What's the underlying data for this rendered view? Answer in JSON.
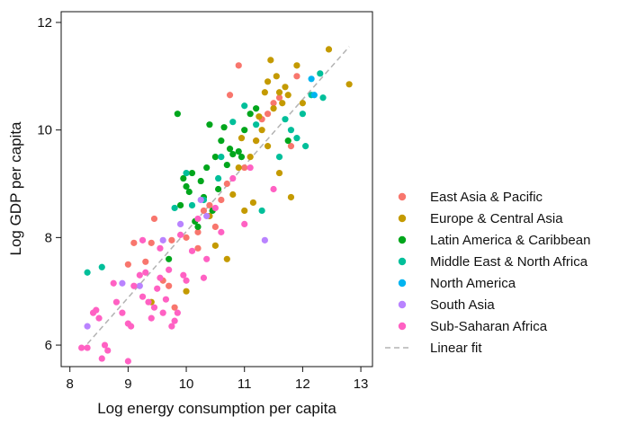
{
  "chart_data": {
    "type": "scatter",
    "xlabel": "Log energy consumption per capita",
    "ylabel": "Log GDP per capita",
    "xlim": [
      7.85,
      13.2
    ],
    "ylim": [
      5.6,
      12.2
    ],
    "x_ticks": [
      8,
      9,
      10,
      11,
      12,
      13
    ],
    "y_ticks": [
      6,
      8,
      10,
      12
    ],
    "grid": false,
    "legend_position": "right",
    "fit": {
      "name": "Linear fit",
      "style": "dashed",
      "color": "#b3b3b3",
      "points": [
        [
          8.2,
          5.9
        ],
        [
          12.8,
          11.55
        ]
      ]
    },
    "series": [
      {
        "name": "East Asia & Pacific",
        "color": "#f8766d",
        "points": [
          [
            9.0,
            7.5
          ],
          [
            9.1,
            7.9
          ],
          [
            9.3,
            7.55
          ],
          [
            9.4,
            7.9
          ],
          [
            9.45,
            8.35
          ],
          [
            9.6,
            7.2
          ],
          [
            9.7,
            7.1
          ],
          [
            9.75,
            7.95
          ],
          [
            9.8,
            6.7
          ],
          [
            10.2,
            8.1
          ],
          [
            10.3,
            8.5
          ],
          [
            10.4,
            8.6
          ],
          [
            10.5,
            8.2
          ],
          [
            10.6,
            8.7
          ],
          [
            10.7,
            9.0
          ],
          [
            10.75,
            10.65
          ],
          [
            10.9,
            11.2
          ],
          [
            11.0,
            9.3
          ],
          [
            11.2,
            9.8
          ],
          [
            11.3,
            10.2
          ],
          [
            11.4,
            10.3
          ],
          [
            11.6,
            10.6
          ],
          [
            11.8,
            9.7
          ],
          [
            11.9,
            11.0
          ],
          [
            10.2,
            7.8
          ],
          [
            10.0,
            8.0
          ],
          [
            11.5,
            10.5
          ]
        ]
      },
      {
        "name": "Europe & Central Asia",
        "color": "#c49a00",
        "points": [
          [
            9.4,
            6.8
          ],
          [
            10.0,
            7.0
          ],
          [
            10.4,
            8.4
          ],
          [
            10.5,
            7.85
          ],
          [
            10.7,
            7.6
          ],
          [
            10.8,
            8.8
          ],
          [
            10.9,
            9.3
          ],
          [
            11.0,
            8.5
          ],
          [
            11.1,
            9.5
          ],
          [
            11.15,
            8.65
          ],
          [
            11.2,
            9.8
          ],
          [
            11.3,
            10.0
          ],
          [
            11.35,
            10.7
          ],
          [
            11.4,
            10.9
          ],
          [
            11.45,
            11.3
          ],
          [
            11.5,
            10.4
          ],
          [
            11.55,
            11.0
          ],
          [
            11.6,
            10.7
          ],
          [
            11.65,
            10.5
          ],
          [
            11.7,
            10.8
          ],
          [
            11.75,
            10.65
          ],
          [
            11.8,
            8.75
          ],
          [
            11.9,
            11.2
          ],
          [
            12.0,
            10.5
          ],
          [
            12.45,
            11.5
          ],
          [
            12.8,
            10.85
          ],
          [
            11.25,
            10.25
          ],
          [
            11.6,
            9.2
          ],
          [
            10.95,
            9.85
          ],
          [
            11.4,
            9.7
          ]
        ]
      },
      {
        "name": "Latin America & Caribbean",
        "color": "#00a61c",
        "points": [
          [
            9.7,
            7.6
          ],
          [
            9.85,
            10.3
          ],
          [
            9.9,
            8.6
          ],
          [
            9.95,
            9.1
          ],
          [
            10.0,
            8.95
          ],
          [
            10.05,
            8.85
          ],
          [
            10.1,
            9.2
          ],
          [
            10.15,
            8.3
          ],
          [
            10.2,
            8.2
          ],
          [
            10.25,
            9.05
          ],
          [
            10.3,
            8.75
          ],
          [
            10.35,
            9.3
          ],
          [
            10.4,
            10.1
          ],
          [
            10.45,
            8.5
          ],
          [
            10.5,
            9.5
          ],
          [
            10.55,
            8.9
          ],
          [
            10.6,
            9.8
          ],
          [
            10.7,
            9.35
          ],
          [
            10.75,
            9.65
          ],
          [
            10.8,
            9.55
          ],
          [
            10.9,
            9.6
          ],
          [
            11.0,
            10.0
          ],
          [
            11.1,
            10.3
          ],
          [
            11.2,
            10.4
          ],
          [
            11.75,
            9.8
          ],
          [
            10.95,
            9.5
          ],
          [
            10.65,
            10.05
          ]
        ]
      },
      {
        "name": "Middle East & North Africa",
        "color": "#00bf9a",
        "points": [
          [
            8.3,
            7.35
          ],
          [
            8.55,
            7.45
          ],
          [
            9.8,
            8.55
          ],
          [
            10.0,
            9.2
          ],
          [
            10.1,
            8.6
          ],
          [
            10.3,
            8.7
          ],
          [
            10.6,
            9.5
          ],
          [
            10.8,
            10.15
          ],
          [
            11.0,
            10.45
          ],
          [
            11.2,
            10.1
          ],
          [
            11.3,
            8.5
          ],
          [
            11.6,
            9.5
          ],
          [
            11.7,
            10.2
          ],
          [
            11.8,
            10.0
          ],
          [
            11.9,
            9.85
          ],
          [
            12.0,
            10.3
          ],
          [
            12.05,
            9.7
          ],
          [
            12.15,
            10.65
          ],
          [
            12.3,
            11.05
          ],
          [
            12.35,
            10.6
          ],
          [
            10.55,
            9.1
          ]
        ]
      },
      {
        "name": "North America",
        "color": "#00b4f0",
        "points": [
          [
            12.15,
            10.95
          ],
          [
            12.2,
            10.65
          ]
        ]
      },
      {
        "name": "South Asia",
        "color": "#b983ff",
        "points": [
          [
            8.3,
            6.35
          ],
          [
            8.9,
            7.15
          ],
          [
            9.6,
            7.95
          ],
          [
            9.9,
            8.25
          ],
          [
            10.25,
            8.7
          ],
          [
            11.35,
            7.95
          ],
          [
            9.2,
            7.1
          ],
          [
            10.35,
            8.4
          ]
        ]
      },
      {
        "name": "Sub-Saharan Africa",
        "color": "#ff61c3",
        "points": [
          [
            8.2,
            5.95
          ],
          [
            8.3,
            5.95
          ],
          [
            8.4,
            6.6
          ],
          [
            8.45,
            6.65
          ],
          [
            8.5,
            6.5
          ],
          [
            8.55,
            5.75
          ],
          [
            8.6,
            6.0
          ],
          [
            8.65,
            5.9
          ],
          [
            8.8,
            6.8
          ],
          [
            8.9,
            6.6
          ],
          [
            9.0,
            6.4
          ],
          [
            9.0,
            5.7
          ],
          [
            9.05,
            6.35
          ],
          [
            9.1,
            7.1
          ],
          [
            9.2,
            7.3
          ],
          [
            9.25,
            6.9
          ],
          [
            9.3,
            7.35
          ],
          [
            9.35,
            6.8
          ],
          [
            9.4,
            6.5
          ],
          [
            9.45,
            6.7
          ],
          [
            9.5,
            7.05
          ],
          [
            9.55,
            7.8
          ],
          [
            9.6,
            6.6
          ],
          [
            9.65,
            6.85
          ],
          [
            9.7,
            7.4
          ],
          [
            9.75,
            6.35
          ],
          [
            9.8,
            6.45
          ],
          [
            9.85,
            6.6
          ],
          [
            9.9,
            8.05
          ],
          [
            9.95,
            7.3
          ],
          [
            10.0,
            7.2
          ],
          [
            10.1,
            7.75
          ],
          [
            10.2,
            8.35
          ],
          [
            10.3,
            7.25
          ],
          [
            10.35,
            7.6
          ],
          [
            10.5,
            8.55
          ],
          [
            10.6,
            8.1
          ],
          [
            10.8,
            9.1
          ],
          [
            11.0,
            8.25
          ],
          [
            11.1,
            9.3
          ],
          [
            11.5,
            8.9
          ],
          [
            9.25,
            7.95
          ],
          [
            8.75,
            7.15
          ],
          [
            9.55,
            7.25
          ]
        ]
      }
    ]
  }
}
